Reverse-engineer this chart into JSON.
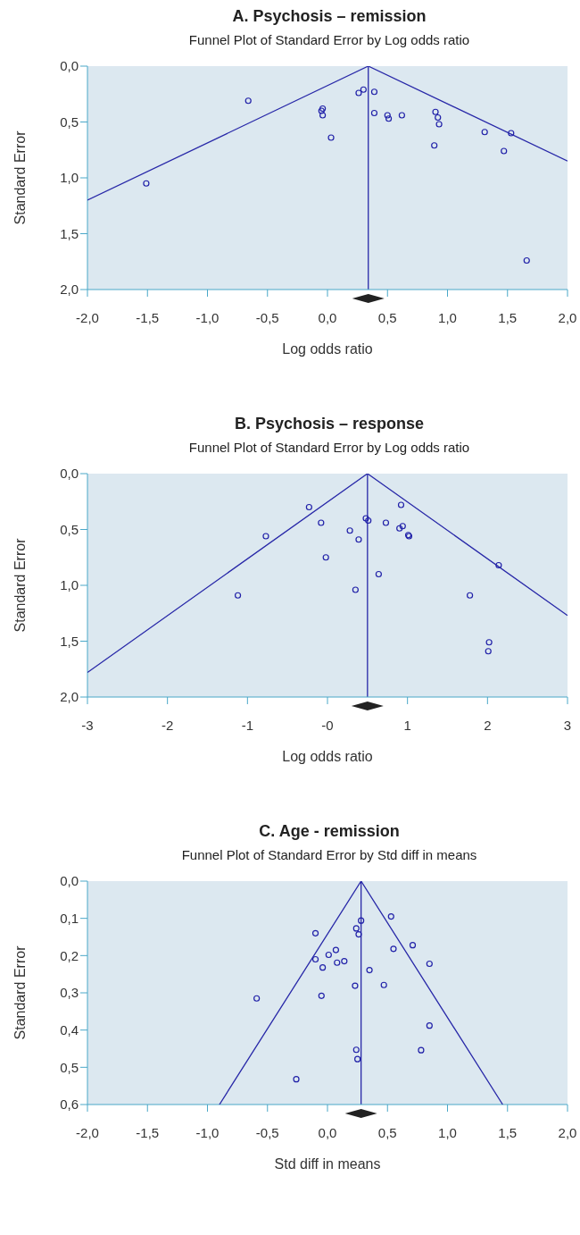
{
  "chart_data": [
    {
      "type": "scatter",
      "title": "A. Psychosis – remission",
      "subtitle": "Funnel Plot of Standard Error by Log odds ratio",
      "xlabel": "Log odds ratio",
      "ylabel": "Standard Error",
      "xlim": [
        -2,
        2
      ],
      "ylim": [
        2,
        0
      ],
      "xticks": [
        {
          "value": -2,
          "label": "-2,0"
        },
        {
          "value": -1.5,
          "label": "-1,5"
        },
        {
          "value": -1,
          "label": "-1,0"
        },
        {
          "value": -0.5,
          "label": "-0,5"
        },
        {
          "value": 0,
          "label": "0,0"
        },
        {
          "value": 0.5,
          "label": "0,5"
        },
        {
          "value": 1,
          "label": "1,0"
        },
        {
          "value": 1.5,
          "label": "1,5"
        },
        {
          "value": 2,
          "label": "2,0"
        }
      ],
      "yticks": [
        {
          "value": 0,
          "label": "0,0"
        },
        {
          "value": 0.5,
          "label": "0,5"
        },
        {
          "value": 1,
          "label": "1,0"
        },
        {
          "value": 1.5,
          "label": "1,5"
        },
        {
          "value": 2,
          "label": "2,0"
        }
      ],
      "grid": false,
      "ref_lines": [
        {
          "axis": "x",
          "value": 0.34,
          "color": "#2828a8"
        }
      ],
      "series": [
        {
          "marker": "circle",
          "color": "#2020a8",
          "x": [
            -0.66,
            -1.51,
            -0.05,
            -0.04,
            -0.04,
            0.03,
            0.26,
            0.3,
            0.39,
            0.39,
            0.5,
            0.51,
            0.62,
            0.9,
            0.92,
            0.93,
            0.89,
            1.31,
            1.53,
            1.47,
            1.66
          ],
          "values": [
            0.31,
            1.05,
            0.4,
            0.38,
            0.44,
            0.64,
            0.24,
            0.21,
            0.23,
            0.42,
            0.44,
            0.47,
            0.44,
            0.41,
            0.46,
            0.52,
            0.71,
            0.59,
            0.6,
            0.76,
            1.74
          ]
        },
        {
          "type": "line",
          "marker": "none",
          "color": "#2828a8",
          "x": [
            -2,
            0.34,
            2
          ],
          "values": [
            1.2,
            0,
            0.85
          ]
        }
      ]
    },
    {
      "type": "scatter",
      "title": "B. Psychosis – response",
      "subtitle": "Funnel Plot of Standard Error by Log odds ratio",
      "xlabel": "Log odds ratio",
      "ylabel": "Standard Error",
      "xlim": [
        -3,
        3
      ],
      "ylim": [
        2,
        0
      ],
      "xticks": [
        -3,
        -2,
        -1,
        {
          "value": 0,
          "label": "-0"
        },
        1,
        2,
        3
      ],
      "yticks": [
        {
          "value": 0,
          "label": "0,0"
        },
        {
          "value": 0.5,
          "label": "0,5"
        },
        {
          "value": 1,
          "label": "1,0"
        },
        {
          "value": 1.5,
          "label": "1,5"
        },
        {
          "value": 2,
          "label": "2,0"
        }
      ],
      "grid": false,
      "ref_lines": [
        {
          "axis": "x",
          "value": 0.5,
          "color": "#2828a8"
        }
      ],
      "series": [
        {
          "marker": "circle",
          "color": "#2020a8",
          "x": [
            -0.23,
            -0.77,
            -1.12,
            -0.08,
            -0.02,
            0.28,
            0.39,
            0.35,
            0.48,
            0.51,
            0.64,
            0.73,
            0.92,
            0.9,
            0.94,
            1.01,
            1.02,
            2.14,
            1.78,
            2.02,
            2.01
          ],
          "values": [
            0.3,
            0.56,
            1.09,
            0.44,
            0.75,
            0.51,
            0.59,
            1.04,
            0.4,
            0.42,
            0.9,
            0.44,
            0.28,
            0.49,
            0.47,
            0.55,
            0.56,
            0.82,
            1.09,
            1.51,
            1.59
          ]
        },
        {
          "type": "line",
          "marker": "none",
          "color": "#2828a8",
          "x": [
            -3,
            0.5,
            3
          ],
          "values": [
            1.78,
            0,
            1.27
          ]
        }
      ]
    },
    {
      "type": "scatter",
      "title": "C. Age - remission",
      "subtitle": "Funnel Plot of Standard Error by Std diff in means",
      "xlabel": "Std diff in means",
      "ylabel": "Standard Error",
      "xlim": [
        -2,
        2
      ],
      "ylim": [
        0.6,
        0
      ],
      "xticks": [
        {
          "value": -2,
          "label": "-2,0"
        },
        {
          "value": -1.5,
          "label": "-1,5"
        },
        {
          "value": -1,
          "label": "-1,0"
        },
        {
          "value": -0.5,
          "label": "-0,5"
        },
        {
          "value": 0,
          "label": "0,0"
        },
        {
          "value": 0.5,
          "label": "0,5"
        },
        {
          "value": 1,
          "label": "1,0"
        },
        {
          "value": 1.5,
          "label": "1,5"
        },
        {
          "value": 2,
          "label": "2,0"
        }
      ],
      "yticks": [
        {
          "value": 0,
          "label": "0,0"
        },
        {
          "value": 0.1,
          "label": "0,1"
        },
        {
          "value": 0.2,
          "label": "0,2"
        },
        {
          "value": 0.3,
          "label": "0,3"
        },
        {
          "value": 0.4,
          "label": "0,4"
        },
        {
          "value": 0.5,
          "label": "0,5"
        },
        {
          "value": 0.6,
          "label": "0,6"
        }
      ],
      "grid": false,
      "ref_lines": [
        {
          "axis": "x",
          "value": 0.28,
          "color": "#2828a8"
        }
      ],
      "series": [
        {
          "marker": "circle",
          "color": "#2020a8",
          "x": [
            0.53,
            0.28,
            0.24,
            0.26,
            -0.1,
            0.71,
            0.55,
            0.07,
            0.01,
            -0.1,
            0.08,
            0.14,
            -0.04,
            0.35,
            0.85,
            0.23,
            0.47,
            -0.05,
            -0.59,
            0.85,
            0.24,
            0.78,
            0.25,
            -0.26
          ],
          "values": [
            0.095,
            0.106,
            0.127,
            0.143,
            0.14,
            0.172,
            0.182,
            0.185,
            0.198,
            0.21,
            0.219,
            0.215,
            0.232,
            0.239,
            0.222,
            0.281,
            0.279,
            0.308,
            0.315,
            0.388,
            0.453,
            0.454,
            0.478,
            0.532
          ]
        },
        {
          "type": "line",
          "marker": "none",
          "color": "#2828a8",
          "x": [
            -0.9,
            0.28,
            1.46
          ],
          "values": [
            0.6,
            0,
            0.6
          ]
        }
      ]
    }
  ]
}
